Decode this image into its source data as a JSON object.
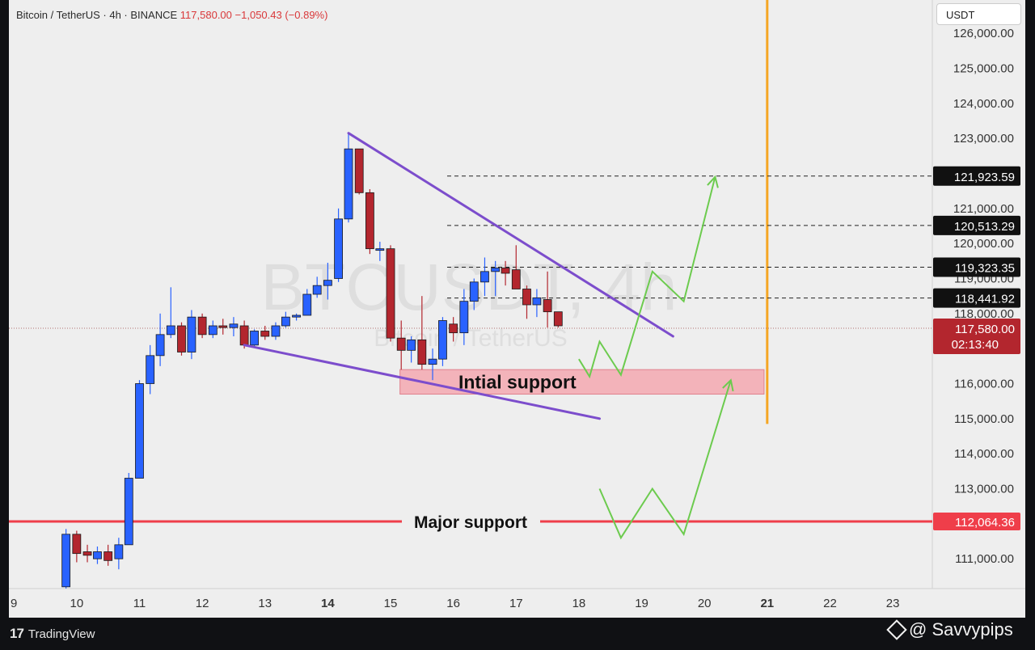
{
  "header": {
    "symbol": "Bitcoin / TetherUS · 4h · BINANCE",
    "price": "117,580.00",
    "change": "−1,050.43 (−0.89%)"
  },
  "currency": "USDT",
  "watermark": {
    "symbol": "BTCUSDT, 4h",
    "name": "Bitcoin / TetherUS"
  },
  "footer": {
    "platform": "TradingView",
    "brand": "@ Savvypips"
  },
  "colors": {
    "up": "#2962ff",
    "down": "#b3262e",
    "trend": "#7c4dcc",
    "arrow": "#6ccb4e",
    "support_zone": "#f3a8b0",
    "major": "#ef3e4a",
    "time_marker": "#f5a623"
  },
  "chart_data": {
    "type": "candlestick",
    "ylim": [
      110150,
      126950
    ],
    "xlim": [
      8.92,
      23.63
    ],
    "y_ticks": [
      111000,
      113000,
      114000,
      115000,
      116000,
      118000,
      119000,
      120000,
      121000,
      123000,
      124000,
      125000,
      126000
    ],
    "x_ticks": [
      {
        "label": "9",
        "x": 9,
        "bold": false
      },
      {
        "label": "10",
        "x": 10,
        "bold": false
      },
      {
        "label": "11",
        "x": 11,
        "bold": false
      },
      {
        "label": "12",
        "x": 12,
        "bold": false
      },
      {
        "label": "13",
        "x": 13,
        "bold": false
      },
      {
        "label": "14",
        "x": 14,
        "bold": true
      },
      {
        "label": "15",
        "x": 15,
        "bold": false
      },
      {
        "label": "16",
        "x": 16,
        "bold": false
      },
      {
        "label": "17",
        "x": 17,
        "bold": false
      },
      {
        "label": "18",
        "x": 18,
        "bold": false
      },
      {
        "label": "19",
        "x": 19,
        "bold": false
      },
      {
        "label": "20",
        "x": 20,
        "bold": false
      },
      {
        "label": "21",
        "x": 21,
        "bold": true
      },
      {
        "label": "22",
        "x": 22,
        "bold": false
      },
      {
        "label": "23",
        "x": 23,
        "bold": false
      }
    ],
    "candles": [
      {
        "t": 9.83,
        "o": 110200,
        "h": 111850,
        "l": 110150,
        "c": 111700
      },
      {
        "t": 10.0,
        "o": 111700,
        "h": 111800,
        "l": 110900,
        "c": 111150
      },
      {
        "t": 10.17,
        "o": 111200,
        "h": 111400,
        "l": 110900,
        "c": 111100
      },
      {
        "t": 10.33,
        "o": 111000,
        "h": 111350,
        "l": 110850,
        "c": 111200
      },
      {
        "t": 10.5,
        "o": 111200,
        "h": 111400,
        "l": 110800,
        "c": 110950
      },
      {
        "t": 10.67,
        "o": 111000,
        "h": 111600,
        "l": 110700,
        "c": 111400
      },
      {
        "t": 10.83,
        "o": 111400,
        "h": 113450,
        "l": 111400,
        "c": 113300
      },
      {
        "t": 11.0,
        "o": 113300,
        "h": 116100,
        "l": 113300,
        "c": 116000
      },
      {
        "t": 11.17,
        "o": 116000,
        "h": 117100,
        "l": 115700,
        "c": 116800
      },
      {
        "t": 11.33,
        "o": 116800,
        "h": 118000,
        "l": 116500,
        "c": 117400
      },
      {
        "t": 11.5,
        "o": 117400,
        "h": 118750,
        "l": 117300,
        "c": 117650
      },
      {
        "t": 11.67,
        "o": 117650,
        "h": 117750,
        "l": 116800,
        "c": 116900
      },
      {
        "t": 11.83,
        "o": 116900,
        "h": 118100,
        "l": 116700,
        "c": 117900
      },
      {
        "t": 12.0,
        "o": 117900,
        "h": 118000,
        "l": 117300,
        "c": 117400
      },
      {
        "t": 12.17,
        "o": 117400,
        "h": 117800,
        "l": 117300,
        "c": 117650
      },
      {
        "t": 12.33,
        "o": 117650,
        "h": 117850,
        "l": 117400,
        "c": 117600
      },
      {
        "t": 12.5,
        "o": 117600,
        "h": 117900,
        "l": 117350,
        "c": 117700
      },
      {
        "t": 12.67,
        "o": 117650,
        "h": 117800,
        "l": 117000,
        "c": 117100
      },
      {
        "t": 12.83,
        "o": 117100,
        "h": 117550,
        "l": 117050,
        "c": 117500
      },
      {
        "t": 13.0,
        "o": 117500,
        "h": 117650,
        "l": 117250,
        "c": 117350
      },
      {
        "t": 13.17,
        "o": 117350,
        "h": 117750,
        "l": 117250,
        "c": 117650
      },
      {
        "t": 13.33,
        "o": 117650,
        "h": 118050,
        "l": 117600,
        "c": 117900
      },
      {
        "t": 13.5,
        "o": 117900,
        "h": 118000,
        "l": 117800,
        "c": 117950
      },
      {
        "t": 13.67,
        "o": 117950,
        "h": 118700,
        "l": 117950,
        "c": 118550
      },
      {
        "t": 13.83,
        "o": 118550,
        "h": 119050,
        "l": 118450,
        "c": 118800
      },
      {
        "t": 14.0,
        "o": 118800,
        "h": 119450,
        "l": 118400,
        "c": 118950
      },
      {
        "t": 14.17,
        "o": 119000,
        "h": 121000,
        "l": 118900,
        "c": 120700
      },
      {
        "t": 14.33,
        "o": 120700,
        "h": 123150,
        "l": 120600,
        "c": 122700
      },
      {
        "t": 14.5,
        "o": 122700,
        "h": 122700,
        "l": 121400,
        "c": 121450
      },
      {
        "t": 14.67,
        "o": 121450,
        "h": 121550,
        "l": 119700,
        "c": 119850
      },
      {
        "t": 14.83,
        "o": 119850,
        "h": 120050,
        "l": 119500,
        "c": 119850
      },
      {
        "t": 15.0,
        "o": 119850,
        "h": 119950,
        "l": 117200,
        "c": 117300
      },
      {
        "t": 15.17,
        "o": 117300,
        "h": 117800,
        "l": 116400,
        "c": 116950
      },
      {
        "t": 15.33,
        "o": 116950,
        "h": 117350,
        "l": 116600,
        "c": 117250
      },
      {
        "t": 15.5,
        "o": 117250,
        "h": 118500,
        "l": 116400,
        "c": 116550
      },
      {
        "t": 15.67,
        "o": 116550,
        "h": 117000,
        "l": 116100,
        "c": 116700
      },
      {
        "t": 15.83,
        "o": 116700,
        "h": 117900,
        "l": 116500,
        "c": 117800
      },
      {
        "t": 16.0,
        "o": 117700,
        "h": 117900,
        "l": 117200,
        "c": 117450
      },
      {
        "t": 16.17,
        "o": 117450,
        "h": 118700,
        "l": 117100,
        "c": 118350
      },
      {
        "t": 16.33,
        "o": 118350,
        "h": 119000,
        "l": 118100,
        "c": 118900
      },
      {
        "t": 16.5,
        "o": 118900,
        "h": 119600,
        "l": 118500,
        "c": 119200
      },
      {
        "t": 16.67,
        "o": 119200,
        "h": 119500,
        "l": 118500,
        "c": 119300
      },
      {
        "t": 16.83,
        "o": 119300,
        "h": 119500,
        "l": 118800,
        "c": 119150
      },
      {
        "t": 17.0,
        "o": 119250,
        "h": 119950,
        "l": 118700,
        "c": 118700
      },
      {
        "t": 17.17,
        "o": 118700,
        "h": 118800,
        "l": 117850,
        "c": 118250
      },
      {
        "t": 17.33,
        "o": 118250,
        "h": 118700,
        "l": 117900,
        "c": 118450
      },
      {
        "t": 17.5,
        "o": 118400,
        "h": 119200,
        "l": 117600,
        "c": 118050
      },
      {
        "t": 17.67,
        "o": 118050,
        "h": 118050,
        "l": 117600,
        "c": 117650
      }
    ],
    "levels": [
      {
        "label": "121,923.59",
        "y": 121923.59
      },
      {
        "label": "120,513.29",
        "y": 120513.29
      },
      {
        "label": "119,323.35",
        "y": 119323.35
      },
      {
        "label": "118,441.92",
        "y": 118441.92
      }
    ],
    "current_price": {
      "label": "117,580.00",
      "countdown": "02:13:40",
      "y": 117580
    },
    "major_support": {
      "label": "Major support",
      "price_label": "112,064.36",
      "y": 112064.36
    },
    "initial_support": {
      "label": "Intial support",
      "y_low": 115700,
      "y_high": 116400,
      "x_start": 15.15,
      "x_end": 20.95
    },
    "trendlines": [
      {
        "x1": 14.33,
        "y1": 123150,
        "x2": 19.5,
        "y2": 117350
      },
      {
        "x1": 12.67,
        "y1": 117100,
        "x2": 18.33,
        "y2": 115000
      }
    ],
    "time_marker": {
      "x": 21.0,
      "y_top": 126950,
      "y_bottom": 114850
    },
    "projections": [
      [
        [
          18.0,
          116700
        ],
        [
          18.17,
          116200
        ],
        [
          18.33,
          117200
        ],
        [
          18.67,
          116250
        ],
        [
          19.17,
          119200
        ],
        [
          19.67,
          118350
        ],
        [
          20.17,
          121900
        ]
      ],
      [
        [
          18.33,
          113000
        ],
        [
          18.67,
          111600
        ],
        [
          19.17,
          113000
        ],
        [
          19.67,
          111700
        ],
        [
          20.42,
          116100
        ]
      ]
    ]
  }
}
